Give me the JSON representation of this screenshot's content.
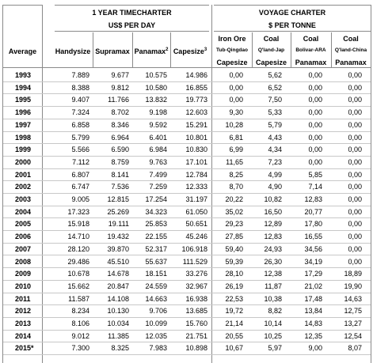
{
  "headers": {
    "timecharter_title": "1 YEAR TIMECHARTER",
    "timecharter_unit": "US$ PER DAY",
    "voyage_title": "VOYAGE CHARTER",
    "voyage_unit": "$ PER TONNE",
    "average": "Average",
    "tc_columns": [
      {
        "label": "Handysize",
        "sup": ""
      },
      {
        "label": "Supramax",
        "sup": ""
      },
      {
        "label": "Panamax",
        "sup": "2"
      },
      {
        "label": "Capesize",
        "sup": "3"
      }
    ],
    "voyage_columns": [
      {
        "commodity": "Iron Ore",
        "route": "Tub-Qingdao",
        "vessel": "Capesize"
      },
      {
        "commodity": "Coal",
        "route": "Q'land-Jap",
        "vessel": "Capesize"
      },
      {
        "commodity": "Coal",
        "route": "Bolivar-ARA",
        "vessel": "Panamax"
      },
      {
        "commodity": "Coal",
        "route": "Q'land-China",
        "vessel": "Panamax"
      }
    ]
  },
  "rows": [
    {
      "year": "1993",
      "values": [
        "7.889",
        "9.677",
        "10.575",
        "14.986",
        "0,00",
        "5,62",
        "0,00",
        "0,00"
      ]
    },
    {
      "year": "1994",
      "values": [
        "8.388",
        "9.812",
        "10.580",
        "16.855",
        "0,00",
        "6,52",
        "0,00",
        "0,00"
      ]
    },
    {
      "year": "1995",
      "values": [
        "9.407",
        "11.766",
        "13.832",
        "19.773",
        "0,00",
        "7,50",
        "0,00",
        "0,00"
      ]
    },
    {
      "year": "1996",
      "values": [
        "7.324",
        "8.702",
        "9.198",
        "12.603",
        "9,30",
        "5,33",
        "0,00",
        "0,00"
      ]
    },
    {
      "year": "1997",
      "values": [
        "6.858",
        "8.346",
        "9.592",
        "15.291",
        "10,28",
        "5,79",
        "0,00",
        "0,00"
      ]
    },
    {
      "year": "1998",
      "values": [
        "5.799",
        "6.964",
        "6.401",
        "10.801",
        "6,81",
        "4,43",
        "0,00",
        "0,00"
      ]
    },
    {
      "year": "1999",
      "values": [
        "5.566",
        "6.590",
        "6.984",
        "10.830",
        "6,99",
        "4,34",
        "0,00",
        "0,00"
      ]
    },
    {
      "year": "2000",
      "values": [
        "7.112",
        "8.759",
        "9.763",
        "17.101",
        "11,65",
        "7,23",
        "0,00",
        "0,00"
      ]
    },
    {
      "year": "2001",
      "values": [
        "6.807",
        "8.141",
        "7.499",
        "12.784",
        "8,25",
        "4,99",
        "5,85",
        "0,00"
      ]
    },
    {
      "year": "2002",
      "values": [
        "6.747",
        "7.536",
        "7.259",
        "12.333",
        "8,70",
        "4,90",
        "7,14",
        "0,00"
      ]
    },
    {
      "year": "2003",
      "values": [
        "9.005",
        "12.815",
        "17.254",
        "31.197",
        "20,22",
        "10,82",
        "12,83",
        "0,00"
      ]
    },
    {
      "year": "2004",
      "values": [
        "17.323",
        "25.269",
        "34.323",
        "61.050",
        "35,02",
        "16,50",
        "20,77",
        "0,00"
      ]
    },
    {
      "year": "2005",
      "values": [
        "15.918",
        "19.111",
        "25.853",
        "50.651",
        "29,23",
        "12,89",
        "17,80",
        "0,00"
      ]
    },
    {
      "year": "2006",
      "values": [
        "14.710",
        "19.432",
        "22.155",
        "45.246",
        "27,85",
        "12,83",
        "16,55",
        "0,00"
      ]
    },
    {
      "year": "2007",
      "values": [
        "28.120",
        "39.870",
        "52.317",
        "106.918",
        "59,40",
        "24,93",
        "34,56",
        "0,00"
      ]
    },
    {
      "year": "2008",
      "values": [
        "29.486",
        "45.510",
        "55.637",
        "111.529",
        "59,39",
        "26,30",
        "34,19",
        "0,00"
      ]
    },
    {
      "year": "2009",
      "values": [
        "10.678",
        "14.678",
        "18.151",
        "33.276",
        "28,10",
        "12,38",
        "17,29",
        "18,89"
      ]
    },
    {
      "year": "2010",
      "values": [
        "15.662",
        "20.847",
        "24.559",
        "32.967",
        "26,19",
        "11,87",
        "21,02",
        "19,90"
      ]
    },
    {
      "year": "2011",
      "values": [
        "11.587",
        "14.108",
        "14.663",
        "16.938",
        "22,53",
        "10,38",
        "17,48",
        "14,63"
      ]
    },
    {
      "year": "2012",
      "values": [
        "8.234",
        "10.130",
        "9.706",
        "13.685",
        "19,72",
        "8,82",
        "13,84",
        "12,75"
      ]
    },
    {
      "year": "2013",
      "values": [
        "8.106",
        "10.034",
        "10.099",
        "15.760",
        "21,14",
        "10,14",
        "14,83",
        "13,27"
      ]
    },
    {
      "year": "2014",
      "values": [
        "9.012",
        "11.385",
        "12.035",
        "21.751",
        "20,55",
        "10,25",
        "12,35",
        "12,54"
      ]
    },
    {
      "year": "2015*",
      "values": [
        "7.300",
        "8.325",
        "7.983",
        "10.898",
        "10,67",
        "5,97",
        "9,00",
        "8,07"
      ]
    }
  ]
}
